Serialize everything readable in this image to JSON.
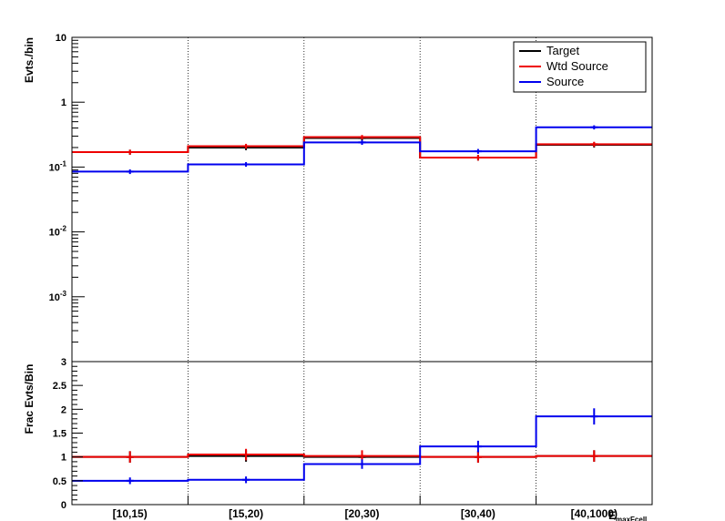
{
  "colors": {
    "target": "#000000",
    "wtd_source": "#ee0000",
    "source": "#0000ee",
    "frame": "#000000"
  },
  "legend": {
    "position": "top-right",
    "entries": [
      {
        "label": "Target",
        "color": "#000000"
      },
      {
        "label": "Wtd Source",
        "color": "#ee0000"
      },
      {
        "label": "Source",
        "color": "#0000ee"
      }
    ]
  },
  "chart_data": [
    {
      "type": "line",
      "panel": "top",
      "scale": "log",
      "ylabel": "Evts./bin",
      "ylim": [
        0.0001,
        10
      ],
      "ytick_labels": [
        {
          "base": "10",
          "exp": "-3",
          "value": 0.001
        },
        {
          "base": "10",
          "exp": "-2",
          "value": 0.01
        },
        {
          "base": "10",
          "exp": "-1",
          "value": 0.1
        },
        {
          "base": "1",
          "exp": "",
          "value": 1
        },
        {
          "base": "10",
          "exp": "",
          "value": 10
        }
      ],
      "categories": [
        "[10,15)",
        "[15,20)",
        "[20,30)",
        "[30,40)",
        "[40,1000)"
      ],
      "series": [
        {
          "name": "Target",
          "color": "#000000",
          "values": [
            0.17,
            0.2,
            0.28,
            0.14,
            0.22
          ],
          "errors": [
            0.015,
            0.018,
            0.022,
            0.014,
            0.02
          ]
        },
        {
          "name": "Wtd Source",
          "color": "#ee0000",
          "values": [
            0.17,
            0.21,
            0.29,
            0.14,
            0.225
          ],
          "errors": [
            0.015,
            0.018,
            0.022,
            0.014,
            0.02
          ]
        },
        {
          "name": "Source",
          "color": "#0000ee",
          "values": [
            0.085,
            0.11,
            0.24,
            0.175,
            0.41
          ],
          "errors": [
            0.007,
            0.009,
            0.02,
            0.015,
            0.03
          ]
        }
      ],
      "grid": "vertical-dotted"
    },
    {
      "type": "line",
      "panel": "bottom",
      "ylabel": "Frac Evts/Bin",
      "xlabel": "E_maxFcell",
      "ylim": [
        0,
        3
      ],
      "yticks": [
        0,
        0.5,
        1,
        1.5,
        2,
        2.5,
        3
      ],
      "ytick_labels": [
        "0",
        "0.5",
        "1",
        "1.5",
        "2",
        "2.5",
        "3"
      ],
      "categories": [
        "[10,15)",
        "[15,20)",
        "[20,30)",
        "[30,40)",
        "[40,1000)"
      ],
      "series": [
        {
          "name": "Target",
          "color": "#000000",
          "values": [
            1.0,
            1.02,
            1.0,
            1.0,
            1.02
          ],
          "errors": [
            0.12,
            0.12,
            0.12,
            0.12,
            0.12
          ]
        },
        {
          "name": "Wtd Source",
          "color": "#ee0000",
          "values": [
            1.0,
            1.05,
            1.02,
            1.0,
            1.02
          ],
          "errors": [
            0.12,
            0.12,
            0.12,
            0.12,
            0.12
          ]
        },
        {
          "name": "Source",
          "color": "#0000ee",
          "values": [
            0.5,
            0.52,
            0.85,
            1.22,
            1.85
          ],
          "errors": [
            0.07,
            0.07,
            0.1,
            0.12,
            0.17
          ]
        }
      ],
      "grid": "vertical-dotted"
    }
  ]
}
